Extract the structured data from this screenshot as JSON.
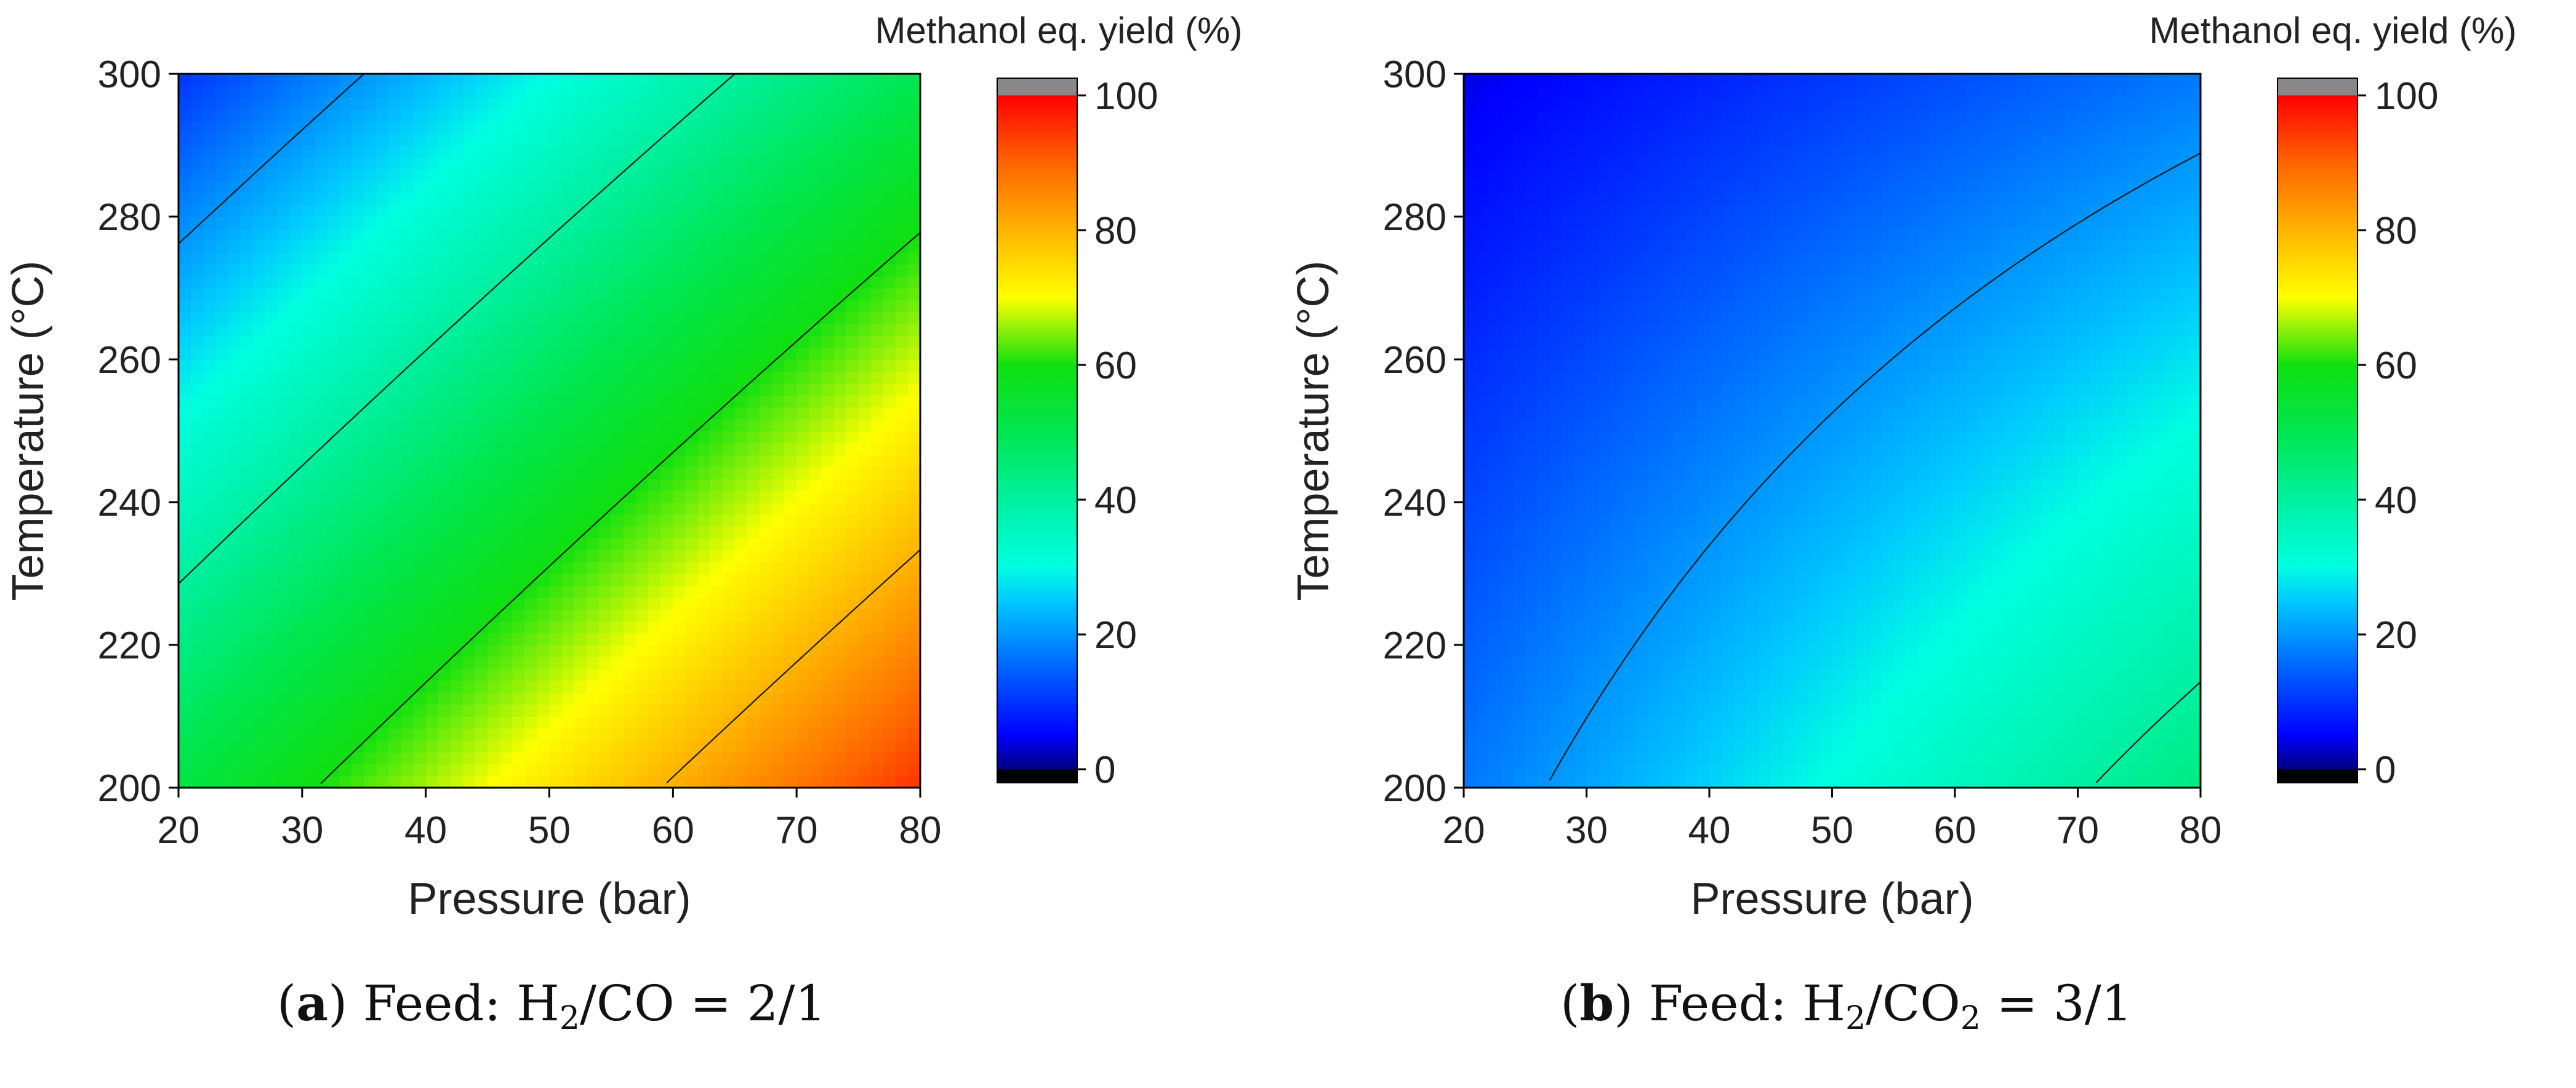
{
  "chart_data": [
    {
      "type": "heatmap",
      "panel": "a",
      "xlabel": "Pressure (bar)",
      "ylabel": "Temperature (°C)",
      "xlim": [
        20,
        80
      ],
      "ylim": [
        200,
        300
      ],
      "xticks": [
        "20",
        "30",
        "40",
        "50",
        "60",
        "70",
        "80"
      ],
      "yticks": [
        "200",
        "220",
        "240",
        "260",
        "280",
        "300"
      ],
      "colorbar_label": "Methanol eq. yield (%)",
      "colorbar_range": [
        0,
        100
      ],
      "colorbar_ticks": [
        "0",
        "20",
        "40",
        "60",
        "80",
        "100"
      ],
      "corner_values": {
        "P20_T300": 10,
        "P80_T300": 50,
        "P20_T200": 52,
        "P80_T200": 95
      },
      "contour_levels": [
        20,
        40,
        60,
        80
      ],
      "caption_prefix": "(",
      "caption_label": "a",
      "caption_mid": ") Feed: H",
      "caption_sub1": "2",
      "caption_rest": "/CO = 2/1"
    },
    {
      "type": "heatmap",
      "panel": "b",
      "xlabel": "Pressure (bar)",
      "ylabel": "Temperature (°C)",
      "xlim": [
        20,
        80
      ],
      "ylim": [
        200,
        300
      ],
      "xticks": [
        "20",
        "30",
        "40",
        "50",
        "60",
        "70",
        "80"
      ],
      "yticks": [
        "200",
        "220",
        "240",
        "260",
        "280",
        "300"
      ],
      "colorbar_label": "Methanol eq. yield (%)",
      "colorbar_range": [
        0,
        100
      ],
      "colorbar_ticks": [
        "0",
        "20",
        "40",
        "60",
        "80",
        "100"
      ],
      "corner_values": {
        "P20_T300": 4,
        "P80_T300": 17,
        "P20_T200": 17,
        "P80_T200": 44
      },
      "contour_levels": [
        20,
        40
      ],
      "caption_prefix": "(",
      "caption_label": "b",
      "caption_mid": ") Feed: H",
      "caption_sub1": "2",
      "caption_rest": "/CO",
      "caption_sub2": "2",
      "caption_rest2": " = 3/1"
    }
  ]
}
